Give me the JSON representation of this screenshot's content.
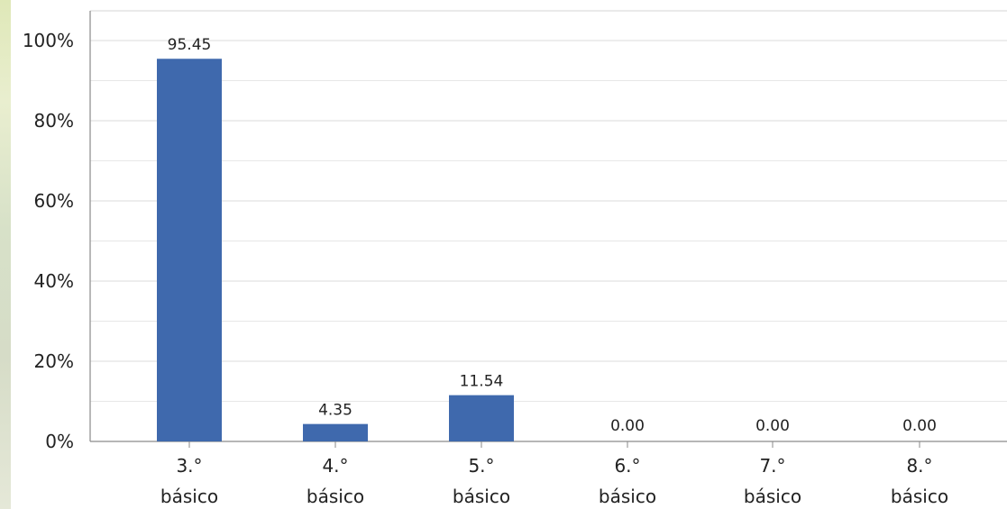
{
  "chart_data": {
    "type": "bar",
    "categories": [
      "3.º básico",
      "4.º básico",
      "5.º básico",
      "6.º básico",
      "7.º básico",
      "8.º básico"
    ],
    "tick_labels": [
      [
        "3.°",
        "básico"
      ],
      [
        "4.°",
        "básico"
      ],
      [
        "5.°",
        "básico"
      ],
      [
        "6.°",
        "básico"
      ],
      [
        "7.°",
        "básico"
      ],
      [
        "8.°",
        "básico"
      ]
    ],
    "values": [
      95.45,
      4.35,
      11.54,
      0.0,
      0.0,
      0.0
    ],
    "data_labels": [
      "95.45",
      "4.35",
      "11.54",
      "0.00",
      "0.00",
      "0.00"
    ],
    "y_ticks": [
      "0%",
      "20%",
      "40%",
      "60%",
      "80%",
      "100%"
    ],
    "ylim": [
      0,
      100
    ],
    "grid": true,
    "legend": "none",
    "colors": {
      "bar": "#3f69ad",
      "grid": "#e7e7e7",
      "axis": "#8a8a8a",
      "text": "#222222"
    }
  }
}
